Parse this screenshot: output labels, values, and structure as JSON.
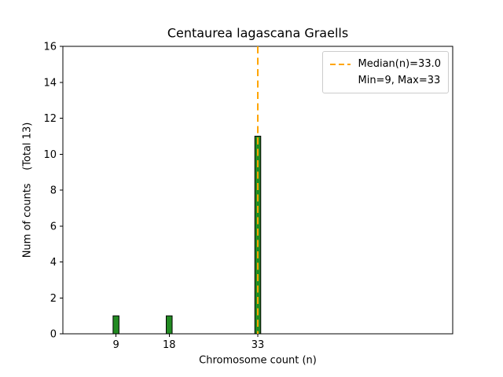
{
  "chart_data": {
    "type": "bar",
    "title": "Centaurea lagascana Graells",
    "xlabel": "Chromosome count (n)",
    "ylabel": "Num of counts    (Total 13)",
    "x": [
      9,
      18,
      33
    ],
    "counts": [
      1,
      1,
      11
    ],
    "total_counts": 13,
    "median": 33.0,
    "min": 9,
    "max": 33,
    "xlim": [
      0,
      66
    ],
    "ylim": [
      0,
      16
    ],
    "xticks": [
      9,
      18,
      33
    ],
    "yticks": [
      0,
      2,
      4,
      6,
      8,
      10,
      12,
      14,
      16
    ],
    "bar_width": 1,
    "bar_color": "#228B22",
    "bar_edge_color": "#000000",
    "median_line_color": "#FFA500",
    "legend": {
      "median_label": "Median(n)=33.0",
      "minmax_label": "Min=9, Max=33"
    }
  }
}
